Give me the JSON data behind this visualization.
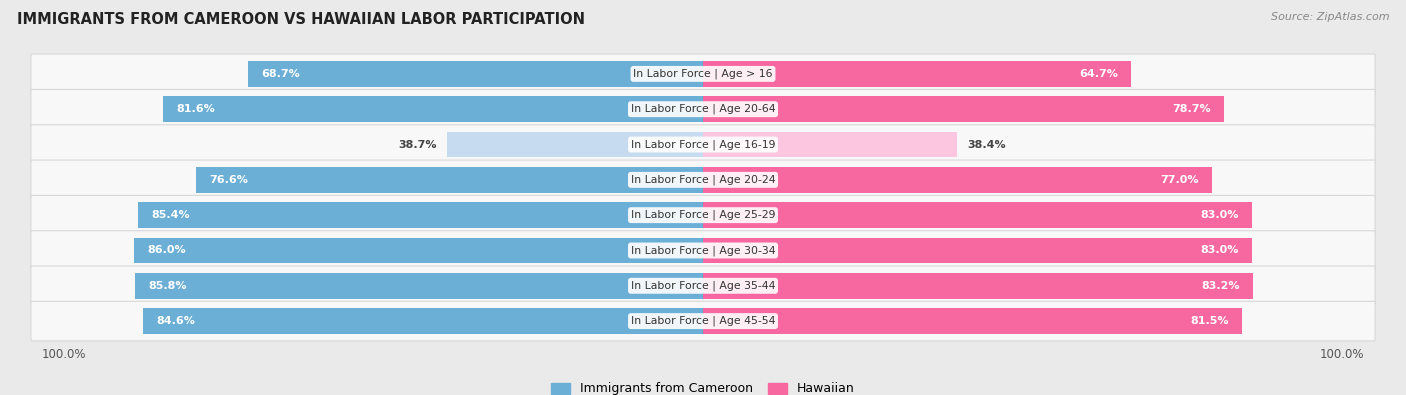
{
  "title": "IMMIGRANTS FROM CAMEROON VS HAWAIIAN LABOR PARTICIPATION",
  "source": "Source: ZipAtlas.com",
  "categories": [
    "In Labor Force | Age > 16",
    "In Labor Force | Age 20-64",
    "In Labor Force | Age 16-19",
    "In Labor Force | Age 20-24",
    "In Labor Force | Age 25-29",
    "In Labor Force | Age 30-34",
    "In Labor Force | Age 35-44",
    "In Labor Force | Age 45-54"
  ],
  "cameroon_values": [
    68.7,
    81.6,
    38.7,
    76.6,
    85.4,
    86.0,
    85.8,
    84.6
  ],
  "hawaiian_values": [
    64.7,
    78.7,
    38.4,
    77.0,
    83.0,
    83.0,
    83.2,
    81.5
  ],
  "cameroon_color": "#6baed6",
  "cameroon_color_light": "#c6dbef",
  "hawaiian_color": "#f768a1",
  "hawaiian_color_light": "#fcc5e0",
  "background_color": "#eaeaea",
  "row_bg_even": "#f5f5f5",
  "row_bg_odd": "#ebebeb",
  "max_val": 100.0,
  "legend_cameroon": "Immigrants from Cameroon",
  "legend_hawaiian": "Hawaiian",
  "threshold": 55
}
